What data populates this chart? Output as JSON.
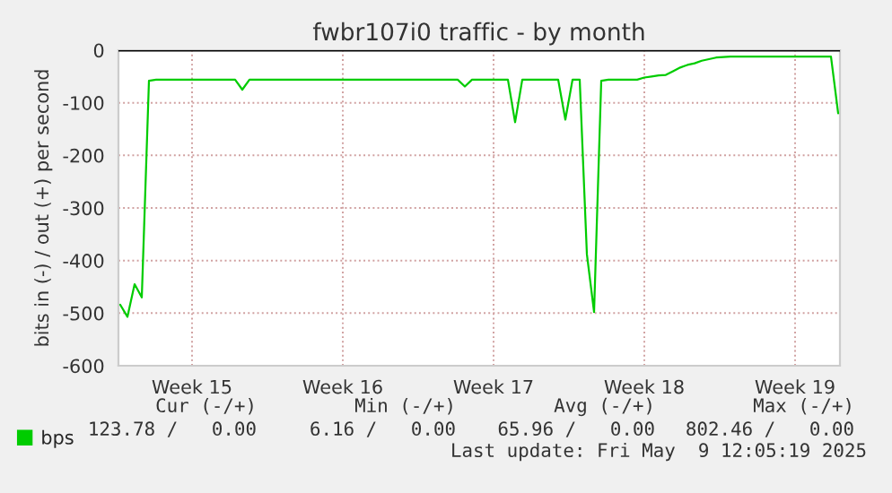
{
  "chart_data": {
    "type": "line",
    "title": "fwbr107i0 traffic - by month",
    "ylabel": "bits in (-) / out (+) per second",
    "categories": [
      null,
      null,
      null,
      null,
      null,
      null,
      null,
      null,
      null,
      null,
      "Week 15",
      null,
      null,
      null,
      null,
      null,
      null,
      null,
      null,
      null,
      null,
      null,
      null,
      null,
      null,
      null,
      null,
      null,
      null,
      null,
      null,
      "Week 16",
      null,
      null,
      null,
      null,
      null,
      null,
      null,
      null,
      null,
      null,
      null,
      null,
      null,
      null,
      null,
      null,
      null,
      null,
      null,
      null,
      "Week 17",
      null,
      null,
      null,
      null,
      null,
      null,
      null,
      null,
      null,
      null,
      null,
      null,
      null,
      null,
      null,
      null,
      null,
      null,
      null,
      null,
      "Week 18",
      null,
      null,
      null,
      null,
      null,
      null,
      null,
      null,
      null,
      null,
      null,
      null,
      null,
      null,
      null,
      null,
      null,
      null,
      null,
      null,
      "Week 19",
      null,
      null,
      null,
      null,
      null,
      null
    ],
    "series": [
      {
        "name": "bps",
        "color": "#00cc00",
        "values": [
          -484,
          -507,
          -445,
          -470,
          -58,
          -56,
          -56,
          -56,
          -56,
          -56,
          -56,
          -56,
          -56,
          -56,
          -56,
          -56,
          -56,
          -75,
          -56,
          -56,
          -56,
          -56,
          -56,
          -56,
          -56,
          -56,
          -56,
          -56,
          -56,
          -56,
          -56,
          -56,
          -56,
          -56,
          -56,
          -56,
          -56,
          -56,
          -56,
          -56,
          -56,
          -56,
          -56,
          -56,
          -56,
          -56,
          -56,
          -56,
          -69,
          -56,
          -56,
          -56,
          -56,
          -56,
          -56,
          -137,
          -56,
          -56,
          -56,
          -56,
          -56,
          -56,
          -132,
          -56,
          -56,
          -388,
          -498,
          -58,
          -56,
          -56,
          -56,
          -56,
          -56,
          -52,
          -50,
          -48,
          -47,
          -40,
          -33,
          -28,
          -25,
          -20,
          -17,
          -14,
          -13,
          -12,
          -12,
          -12,
          -12,
          -12,
          -12,
          -12,
          -12,
          -12,
          -12,
          -12,
          -12,
          -12,
          -12,
          -12,
          -120
        ]
      }
    ],
    "ylim": [
      -600,
      0
    ],
    "yticks": [
      -600,
      -500,
      -400,
      -300,
      -200,
      -100,
      0
    ],
    "ref_lines": [
      {
        "axis": "y",
        "value": 0,
        "color": "#000000"
      }
    ],
    "grid": true,
    "legend": "bottom left",
    "marker": "none",
    "line_style": "solid",
    "annotations": [
      "Cur (-/+)",
      "Min (-/+)",
      "Avg (-/+)",
      "Max (-/+)",
      "123.78 /   0.00",
      "6.16 /   0.00",
      "65.96 /   0.00",
      "802.46 /   0.00",
      "Last update: Fri May  9 12:05:19 2025"
    ]
  }
}
